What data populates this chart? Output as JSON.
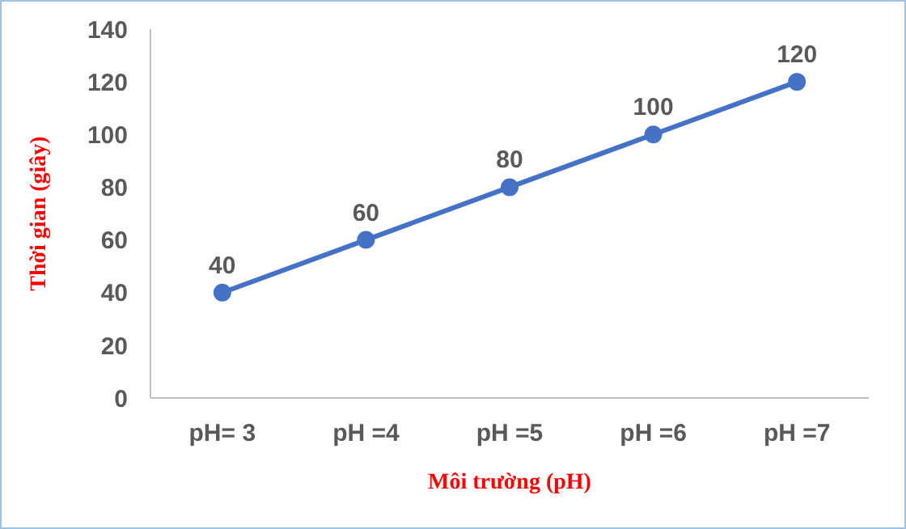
{
  "chart_data": {
    "type": "line",
    "xlabel": "Môi trường (pH)",
    "ylabel": "Thời gian (giây)",
    "categories": [
      "pH= 3",
      "pH =4",
      "pH =5",
      "pH =6",
      "pH =7"
    ],
    "series": [
      {
        "color": "#4472c4",
        "values": [
          40,
          60,
          80,
          100,
          120
        ]
      }
    ],
    "ylim": [
      0,
      140
    ],
    "yticks": [
      0,
      20,
      40,
      60,
      80,
      100,
      120,
      140
    ],
    "data_labels": true,
    "marker": "circle",
    "line_style": "solid"
  }
}
